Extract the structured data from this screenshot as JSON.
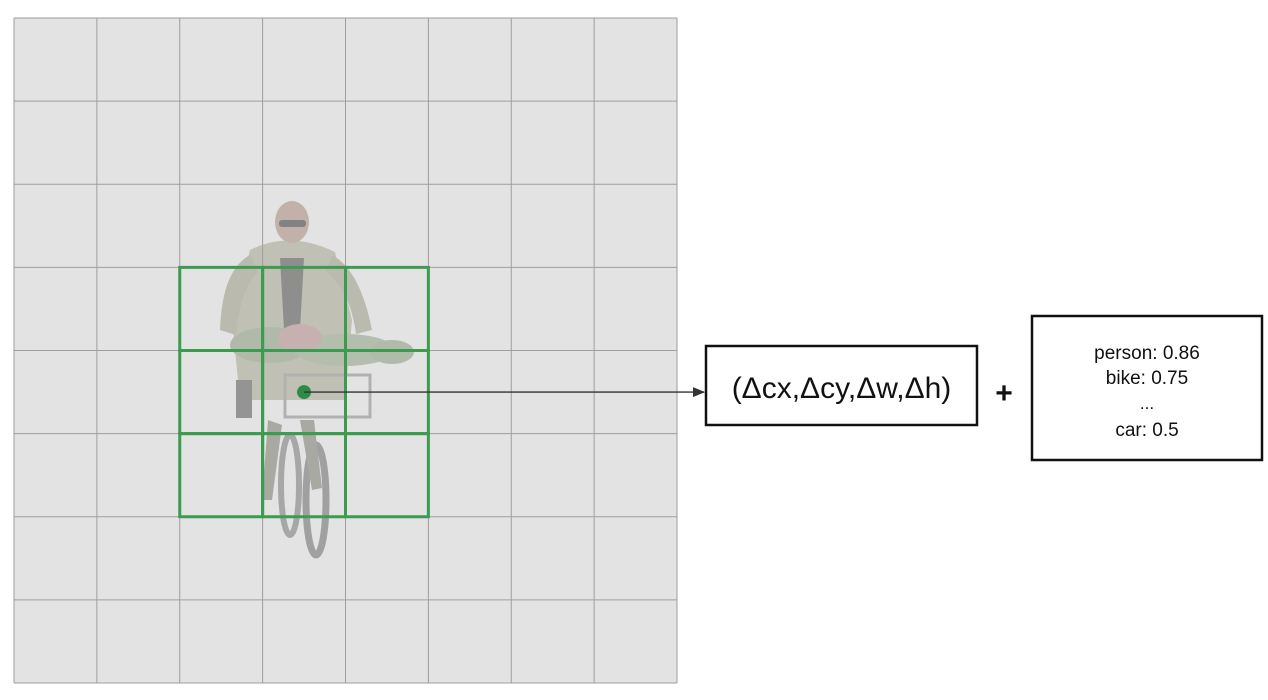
{
  "diagram": {
    "grid": {
      "rows": 8,
      "cols": 8
    },
    "neighborhood": {
      "rows": 3,
      "cols": 3,
      "center_cell": {
        "row": 4,
        "col": 3
      }
    },
    "colors": {
      "background_tint": "#e3e3e3",
      "grid_line": "#9e9e9e",
      "neighborhood": "#3d9b4f",
      "center_dot": "#2e8b45",
      "arrow": "#333333",
      "box_border": "#111111"
    },
    "regression_output": "(Δcx,Δcy,Δw,Δh)",
    "plus_sign": "+",
    "class_scores": [
      "person: 0.86",
      "bike: 0.75",
      "...",
      "car: 0.5"
    ]
  }
}
